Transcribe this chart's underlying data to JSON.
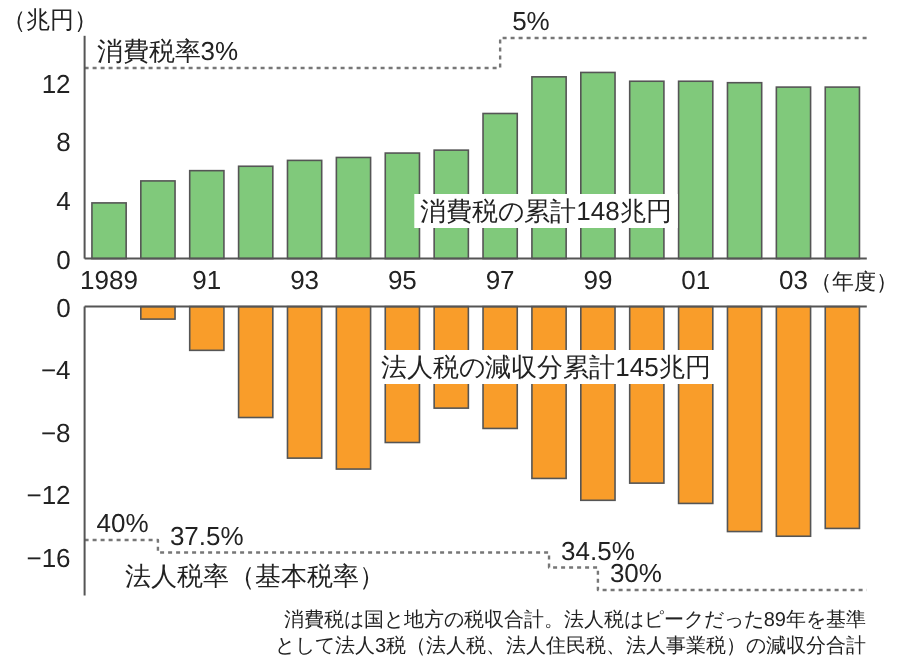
{
  "chart_data": [
    {
      "type": "bar",
      "ylabel": "（兆円）",
      "xlabel": "（年度）",
      "x": [
        1989,
        1990,
        1991,
        1992,
        1993,
        1994,
        1995,
        1996,
        1997,
        1998,
        1999,
        2000,
        2001,
        2002,
        2003,
        2004
      ],
      "xlim": [
        1988.5,
        2004.5
      ],
      "xticks": [
        {
          "value": 1989,
          "label": "1989"
        },
        {
          "value": 1991,
          "label": "91"
        },
        {
          "value": 1993,
          "label": "93"
        },
        {
          "value": 1995,
          "label": "95"
        },
        {
          "value": 1997,
          "label": "97"
        },
        {
          "value": 1999,
          "label": "99"
        },
        {
          "value": 2001,
          "label": "01"
        },
        {
          "value": 2003,
          "label": "03"
        }
      ],
      "ylim": [
        0,
        15.2
      ],
      "yticks": [
        0,
        4,
        8,
        12
      ],
      "series": [
        {
          "color": "#80c97b",
          "values": [
            3.8,
            5.3,
            6.0,
            6.3,
            6.7,
            6.9,
            7.2,
            7.4,
            9.9,
            12.4,
            12.7,
            12.1,
            12.1,
            12.0,
            11.7,
            11.7
          ]
        },
        {
          "type": "step",
          "axis": "y2",
          "color": "#777777",
          "line_style": "dotted",
          "x": [
            1988.5,
            1997,
            2004.5
          ],
          "values": [
            3,
            5,
            5
          ],
          "value_labels": [
            "消費税率3%",
            "5%",
            null
          ]
        }
      ],
      "annotations": [
        "消費税の累計148兆円"
      ]
    },
    {
      "type": "bar",
      "x": [
        1989,
        1990,
        1991,
        1992,
        1993,
        1994,
        1995,
        1996,
        1997,
        1998,
        1999,
        2000,
        2001,
        2002,
        2003,
        2004
      ],
      "xlim": [
        1988.5,
        2004.5
      ],
      "tick_labels": "y",
      "ylim": [
        -18.5,
        0
      ],
      "yticks": [
        {
          "value": 0,
          "label": "0"
        },
        {
          "value": -4,
          "label": "−4"
        },
        {
          "value": -8,
          "label": "−8"
        },
        {
          "value": -12,
          "label": "−12"
        },
        {
          "value": -16,
          "label": "−16"
        }
      ],
      "series": [
        {
          "color": "#f99d2a",
          "values": [
            0,
            -0.8,
            -2.8,
            -7.1,
            -9.7,
            -10.4,
            -8.7,
            -6.5,
            -7.8,
            -11.0,
            -12.4,
            -11.3,
            -12.6,
            -14.4,
            -14.7,
            -14.2
          ]
        },
        {
          "type": "step",
          "axis": "y2",
          "name": "法人税率（基本税率）",
          "color": "#777777",
          "line_style": "dotted",
          "x": [
            1988.5,
            1990,
            1998,
            1999,
            2004.5
          ],
          "values": [
            40,
            37.5,
            34.5,
            30,
            30
          ],
          "value_labels": [
            "40%",
            "37.5%",
            "34.5%",
            "30%",
            null
          ]
        }
      ],
      "annotations": [
        "法人税の減収分累計145兆円",
        "消費税は国と地方の税収合計。法人税はピークだった89年を基準",
        "として法人3税（法人税、法人住民税、法人事業税）の減収分合計"
      ]
    }
  ]
}
